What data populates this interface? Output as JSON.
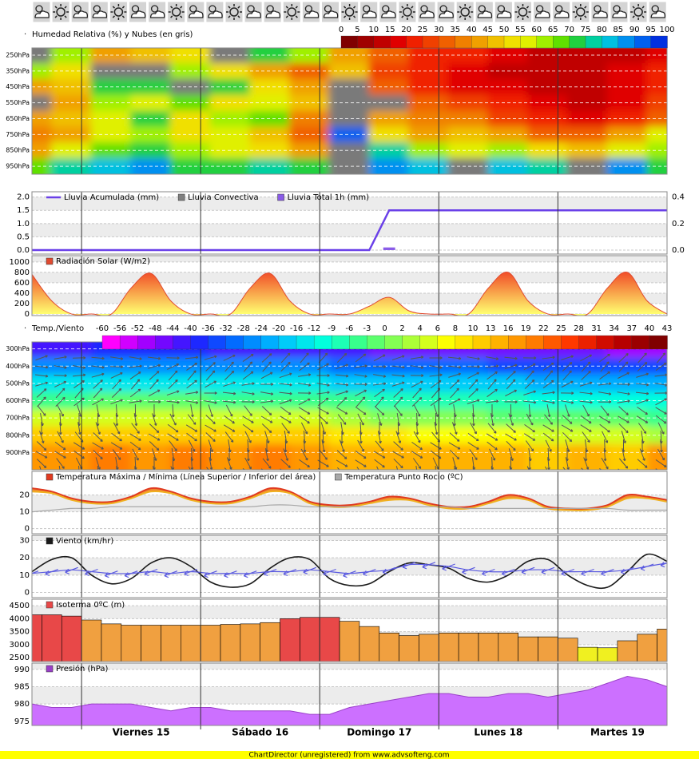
{
  "chart_data": [
    {
      "type": "heatmap",
      "title": "Humedad Relativa (%) y Nubes (en gris)",
      "ylim": [
        205,
        1000
      ],
      "yticks": [
        {
          "value": 250,
          "label": "250hPa"
        },
        {
          "value": 350,
          "label": "350hPa"
        },
        {
          "value": 450,
          "label": "450hPa"
        },
        {
          "value": 550,
          "label": "550hPa"
        },
        {
          "value": 650,
          "label": "650hPa"
        },
        {
          "value": 750,
          "label": "750hPa"
        },
        {
          "value": 850,
          "label": "850hPa"
        },
        {
          "value": 950,
          "label": "950hPa"
        }
      ],
      "colorbar": {
        "ticks": [
          0,
          5,
          10,
          15,
          20,
          25,
          30,
          35,
          40,
          45,
          50,
          55,
          60,
          65,
          70,
          75,
          80,
          85,
          90,
          95,
          100
        ],
        "palette": [
          "#800000",
          "#a00000",
          "#c00000",
          "#e00000",
          "#f02000",
          "#f04000",
          "#f06000",
          "#f08000",
          "#f0a000",
          "#f0c000",
          "#f0e000",
          "#e0f000",
          "#a0f000",
          "#60e000",
          "#20d040",
          "#00d0a0",
          "#00c0e0",
          "#0090f0",
          "#0060f0",
          "#0030e0"
        ]
      },
      "cloud_threshold": 98,
      "cloud_color": "#7a7a7a",
      "values": [
        [
          100,
          60,
          40,
          45,
          50,
          100,
          70,
          60,
          40,
          30,
          20,
          20,
          15,
          10,
          10,
          10,
          15
        ],
        [
          60,
          50,
          100,
          100,
          60,
          50,
          40,
          30,
          45,
          25,
          20,
          15,
          10,
          10,
          10,
          15,
          20
        ],
        [
          40,
          45,
          70,
          70,
          100,
          70,
          50,
          40,
          100,
          30,
          20,
          15,
          15,
          10,
          10,
          15,
          20
        ],
        [
          100,
          40,
          60,
          55,
          65,
          50,
          55,
          45,
          100,
          100,
          30,
          25,
          20,
          15,
          10,
          15,
          25
        ],
        [
          40,
          45,
          55,
          70,
          50,
          60,
          65,
          35,
          100,
          40,
          35,
          35,
          25,
          20,
          15,
          20,
          30
        ],
        [
          35,
          40,
          55,
          60,
          50,
          55,
          45,
          30,
          90,
          50,
          40,
          45,
          40,
          30,
          30,
          40,
          55
        ],
        [
          40,
          55,
          65,
          70,
          60,
          55,
          50,
          40,
          100,
          75,
          60,
          55,
          60,
          50,
          45,
          55,
          60
        ],
        [
          65,
          75,
          80,
          85,
          70,
          70,
          75,
          70,
          100,
          85,
          80,
          100,
          80,
          75,
          100,
          85,
          70
        ]
      ]
    },
    {
      "type": "line",
      "ylim": [
        -0.15,
        2.2
      ],
      "yticks": [
        {
          "value": 0,
          "label": "0.0"
        },
        {
          "value": 0.5,
          "label": "0.5"
        },
        {
          "value": 1,
          "label": "1.0"
        },
        {
          "value": 1.5,
          "label": "1.5"
        },
        {
          "value": 2,
          "label": "2.0"
        }
      ],
      "y2lim": [
        -0.03,
        0.44
      ],
      "y2ticks": [
        {
          "value": 0,
          "label": "0.0"
        },
        {
          "value": 0.2,
          "label": "0.2"
        },
        {
          "value": 0.4,
          "label": "0.4"
        }
      ],
      "series": [
        {
          "name": "Lluvia Acumulada (mm)",
          "color": "#6a40e8",
          "legend_symbol": "line",
          "values": [
            0,
            0,
            0,
            0,
            0,
            0,
            0,
            0,
            0,
            0,
            0,
            0,
            0,
            0,
            0,
            0,
            0,
            0,
            1.5,
            1.5,
            1.5,
            1.5,
            1.5,
            1.5,
            1.5,
            1.5,
            1.5,
            1.5,
            1.5,
            1.5,
            1.5,
            1.5,
            1.5
          ]
        },
        {
          "name": "Lluvia Convectiva",
          "color": "#808080",
          "mark": "bar",
          "values": [
            0,
            0,
            0,
            0,
            0,
            0,
            0,
            0,
            0,
            0,
            0,
            0,
            0,
            0,
            0,
            0,
            0,
            0,
            0,
            0,
            0,
            0,
            0,
            0,
            0,
            0,
            0,
            0,
            0,
            0,
            0,
            0,
            0
          ]
        },
        {
          "name": "Lluvia Total 1h (mm)",
          "color": "#8a5ce8",
          "mark": "bar",
          "axis": "y2",
          "values": [
            0,
            0,
            0,
            0,
            0,
            0,
            0,
            0,
            0,
            0,
            0,
            0,
            0,
            0,
            0,
            0,
            0,
            0,
            0.02,
            0,
            0,
            0,
            0,
            0,
            0,
            0,
            0,
            0,
            0,
            0,
            0,
            0,
            0
          ]
        }
      ]
    },
    {
      "type": "area",
      "smooth": true,
      "ylim": [
        -30,
        1120
      ],
      "yticks": [
        0,
        200,
        400,
        600,
        800,
        1000
      ],
      "series": [
        {
          "name": "Radiación Solar (W/m2)",
          "color": "#e04a30",
          "fill": [
            "#f03a20",
            "#ffff70"
          ],
          "values": [
            760,
            250,
            0,
            0,
            0,
            500,
            780,
            250,
            0,
            0,
            0,
            500,
            780,
            250,
            0,
            0,
            0,
            150,
            320,
            60,
            0,
            0,
            0,
            500,
            800,
            250,
            0,
            0,
            0,
            500,
            800,
            250,
            0
          ]
        }
      ]
    },
    {
      "type": "heatmap",
      "title": "Temp./Viento",
      "ylim": [
        260,
        1000
      ],
      "yticks": [
        {
          "value": 300,
          "label": "300hPa"
        },
        {
          "value": 400,
          "label": "400hPa"
        },
        {
          "value": 500,
          "label": "500hPa"
        },
        {
          "value": 600,
          "label": "600hPa"
        },
        {
          "value": 700,
          "label": "700hPa"
        },
        {
          "value": 800,
          "label": "800hPa"
        },
        {
          "value": 900,
          "label": "900hPa"
        }
      ],
      "colorbar": {
        "ticks": [
          -60,
          -56,
          -52,
          -48,
          -44,
          -40,
          -36,
          -32,
          -28,
          -24,
          -20,
          -16,
          -12,
          -9,
          -6,
          -3,
          0,
          2,
          4,
          6,
          8,
          10,
          13,
          16,
          19,
          22,
          25,
          28,
          31,
          34,
          37,
          40,
          43
        ],
        "palette": [
          "#ff00ff",
          "#9000ff",
          "#2020ff",
          "#0070ff",
          "#00c0ff",
          "#00ffe0",
          "#40ff80",
          "#a0ff40",
          "#ffff00",
          "#ffc000",
          "#ff8000",
          "#ff3000",
          "#c00000",
          "#800000"
        ]
      },
      "values": [
        [
          -42,
          -42,
          -40,
          -40,
          -40,
          -41,
          -42,
          -42,
          -44,
          -45,
          -46,
          -46,
          -47,
          -48,
          -48,
          -49,
          -50
        ],
        [
          -28,
          -28,
          -27,
          -27,
          -27,
          -28,
          -28,
          -28,
          -30,
          -31,
          -32,
          -32,
          -33,
          -34,
          -34,
          -35,
          -36
        ],
        [
          -15,
          -15,
          -14,
          -14,
          -14,
          -15,
          -15,
          -15,
          -17,
          -18,
          -19,
          -19,
          -20,
          -21,
          -21,
          -22,
          -23
        ],
        [
          -4,
          -4,
          -3,
          -3,
          -3,
          -4,
          -4,
          -4,
          -6,
          -7,
          -8,
          -8,
          -9,
          -10,
          -10,
          -11,
          -12
        ],
        [
          4,
          4,
          5,
          5,
          5,
          4,
          4,
          4,
          2,
          1,
          0,
          0,
          -1,
          -2,
          -2,
          -3,
          -4
        ],
        [
          11,
          11,
          12,
          12,
          12,
          11,
          11,
          11,
          9,
          8,
          7,
          7,
          6,
          5,
          5,
          4,
          3
        ],
        [
          18,
          16,
          19,
          17,
          19,
          17,
          19,
          16,
          15,
          14,
          14,
          13,
          15,
          12,
          14,
          12,
          16
        ]
      ]
    },
    {
      "type": "band",
      "smooth": true,
      "ylim": [
        -3,
        34
      ],
      "yticks": [
        0,
        10,
        20
      ],
      "series": [
        {
          "name": "Temperatura Máxima / Mínima (Línea Superior / Inferior del área)",
          "color": "#e03a20",
          "lower_color": "#f0b020",
          "fill": "#f08a30",
          "upper": [
            24,
            22,
            18,
            16,
            16,
            19,
            24,
            22,
            18,
            16,
            16,
            19,
            24,
            22,
            16,
            14,
            14,
            16,
            19,
            18,
            15,
            13,
            13,
            16,
            20,
            18,
            13,
            12,
            12,
            14,
            20,
            19,
            17
          ],
          "lower": [
            22,
            21,
            17,
            15,
            15,
            18,
            22,
            21,
            17,
            15,
            15,
            18,
            22,
            21,
            15,
            13,
            13,
            15,
            17,
            17,
            14,
            12,
            12,
            15,
            18,
            17,
            12,
            11,
            11,
            13,
            18,
            18,
            16
          ]
        },
        {
          "name": "Temperatura Punto Rocio (ºC)",
          "color": "#a8a8a8",
          "values": [
            10,
            11,
            12,
            12,
            13,
            13,
            13,
            13,
            13,
            13,
            13,
            13,
            14,
            14,
            13,
            13,
            13,
            13,
            13,
            13,
            13,
            13,
            12,
            12,
            12,
            12,
            12,
            12,
            12,
            12,
            11,
            11,
            11
          ]
        }
      ]
    },
    {
      "type": "line",
      "smooth": true,
      "ylim": [
        -3,
        33
      ],
      "yticks": [
        0,
        10,
        20,
        30
      ],
      "series": [
        {
          "name": "Viento (km/hr)",
          "color": "#1a1a1a",
          "values": [
            12,
            19,
            20,
            10,
            5,
            8,
            17,
            20,
            15,
            6,
            3,
            5,
            14,
            20,
            19,
            8,
            4,
            5,
            12,
            17,
            16,
            14,
            8,
            6,
            10,
            18,
            19,
            10,
            4,
            3,
            12,
            22,
            18
          ]
        }
      ],
      "arrows": {
        "color": "#5a5ae0",
        "values": [
          11,
          12,
          13,
          12,
          11,
          11,
          12,
          11,
          12,
          11,
          11,
          11,
          12,
          12,
          13,
          12,
          11,
          12,
          13,
          16,
          16,
          15,
          13,
          12,
          12,
          13,
          13,
          12,
          12,
          12,
          13,
          15,
          17
        ]
      }
    },
    {
      "type": "bar",
      "ylim": [
        2350,
        4750
      ],
      "yticks": [
        2500,
        3000,
        3500,
        4000,
        4500
      ],
      "color_scale": [
        [
          0,
          "#f0f020"
        ],
        [
          3000,
          "#f0a040"
        ],
        [
          4000,
          "#e84848"
        ]
      ],
      "series": [
        {
          "name": "Isoterma 0ºC (m)",
          "color": "#e84848",
          "values": [
            4150,
            4150,
            4100,
            3950,
            3800,
            3750,
            3750,
            3750,
            3750,
            3750,
            3780,
            3800,
            3850,
            4000,
            4050,
            4050,
            3900,
            3700,
            3450,
            3350,
            3400,
            3450,
            3450,
            3450,
            3450,
            3300,
            3300,
            3250,
            2900,
            2880,
            3150,
            3400,
            3600
          ]
        }
      ]
    },
    {
      "type": "area",
      "ylim": [
        973.8,
        991.8
      ],
      "yticks": [
        975,
        980,
        985,
        990
      ],
      "series": [
        {
          "name": "Presión (hPa)",
          "color": "#9a40c8",
          "fill": "#cc70ff",
          "values": [
            980,
            979,
            979,
            980,
            980,
            980,
            979,
            978,
            979,
            979,
            978,
            978,
            978,
            978,
            977,
            977,
            979,
            980,
            981,
            982,
            983,
            983,
            982,
            982,
            983,
            983,
            982,
            983,
            984,
            986,
            988,
            987,
            985
          ]
        }
      ]
    }
  ],
  "x_labels": [
    "Viernes 15",
    "Sábado 16",
    "Domingo 17",
    "Lunes 18",
    "Martes 19"
  ],
  "footer": "ChartDirector (unregistered) from www.advsofteng.com"
}
